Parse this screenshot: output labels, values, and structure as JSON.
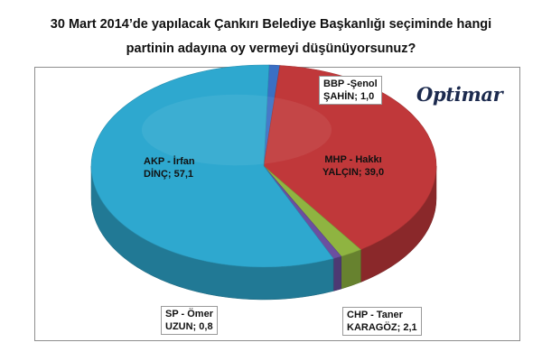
{
  "title": {
    "line1": "30 Mart 2014’de yapılacak Çankırı  Belediye Başkanlığı seçiminde hangi",
    "line2": "partinin  adayına  oy vermeyi düşünüyorsunuz?"
  },
  "logo": "Optimar",
  "chart_data": {
    "type": "pie",
    "title": "30 Mart 2014’de yapılacak Çankırı  Belediye Başkanlığı seçiminde hangi partinin  adayına  oy vermeyi düşünüyorsunuz?",
    "slices": [
      {
        "label_line1": "BBP -Şenol",
        "label_line2": "ŞAHİN; 1,0",
        "value": 1.0,
        "color": "#3a6fc4"
      },
      {
        "label_line1": "MHP - Hakkı",
        "label_line2": "YALÇIN; 39,0",
        "value": 39.0,
        "color": "#c0383a"
      },
      {
        "label_line1": "CHP - Taner",
        "label_line2": "KARAGÖZ; 2,1",
        "value": 2.1,
        "color": "#8fb441"
      },
      {
        "label_line1": "SP - Ömer",
        "label_line2": "UZUN; 0,8",
        "value": 0.8,
        "color": "#6b4fa0"
      },
      {
        "label_line1": "AKP - İrfan",
        "label_line2": "DİNÇ; 57,1",
        "value": 57.1,
        "color": "#2ea8cf"
      }
    ],
    "legend": "none",
    "style": "3d-pie"
  }
}
